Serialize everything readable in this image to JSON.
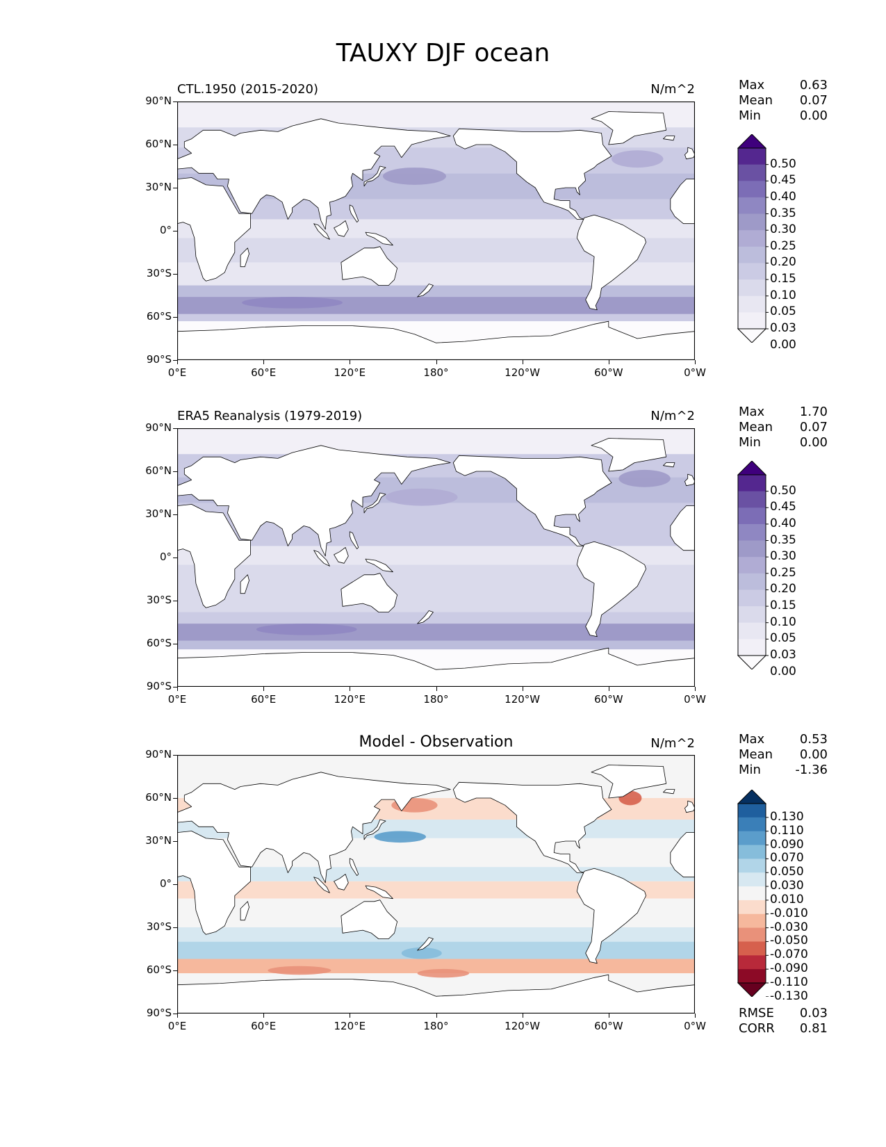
{
  "figure": {
    "title": "TAUXY DJF ocean"
  },
  "axes": {
    "y_ticks": [
      "90°N",
      "60°N",
      "30°N",
      "0°",
      "30°S",
      "60°S",
      "90°S"
    ],
    "x_ticks": [
      "0°E",
      "60°E",
      "120°E",
      "180°",
      "120°W",
      "60°W",
      "0°W"
    ]
  },
  "panels": [
    {
      "title": "CTL.1950 (2015-2020)",
      "units": "N/m^2",
      "stats": [
        {
          "label": "Max",
          "value": "0.63"
        },
        {
          "label": "Mean",
          "value": "0.07"
        },
        {
          "label": "Min",
          "value": "0.00"
        }
      ],
      "colorbar": {
        "labels": [
          "0.50",
          "0.45",
          "0.40",
          "0.35",
          "0.30",
          "0.25",
          "0.20",
          "0.15",
          "0.10",
          "0.05",
          "0.03",
          "0.00"
        ],
        "colors": [
          "#3f007d",
          "#54278f",
          "#6a51a3",
          "#7c6db6",
          "#8f87c2",
          "#9e9ac8",
          "#b0acd4",
          "#bcbddc",
          "#cbcbe4",
          "#dadaeb",
          "#e8e7f2",
          "#f2f0f7",
          "#fcfbfd"
        ]
      }
    },
    {
      "title": "ERA5 Reanalysis (1979-2019)",
      "units": "N/m^2",
      "stats": [
        {
          "label": "Max",
          "value": "1.70"
        },
        {
          "label": "Mean",
          "value": "0.07"
        },
        {
          "label": "Min",
          "value": "0.00"
        }
      ],
      "colorbar": {
        "labels": [
          "0.50",
          "0.45",
          "0.40",
          "0.35",
          "0.30",
          "0.25",
          "0.20",
          "0.15",
          "0.10",
          "0.05",
          "0.03",
          "0.00"
        ],
        "colors": [
          "#3f007d",
          "#54278f",
          "#6a51a3",
          "#7c6db6",
          "#8f87c2",
          "#9e9ac8",
          "#b0acd4",
          "#bcbddc",
          "#cbcbe4",
          "#dadaeb",
          "#e8e7f2",
          "#f2f0f7",
          "#fcfbfd"
        ]
      }
    },
    {
      "title": "Model - Observation",
      "units": "N/m^2",
      "stats": [
        {
          "label": "Max",
          "value": "0.53"
        },
        {
          "label": "Mean",
          "value": "0.00"
        },
        {
          "label": "Min",
          "value": "-1.36"
        }
      ],
      "colorbar": {
        "labels": [
          "0.130",
          "0.110",
          "0.090",
          "0.070",
          "0.050",
          "0.030",
          "0.010",
          "-0.010",
          "-0.030",
          "-0.050",
          "-0.070",
          "-0.090",
          "-0.110",
          "-0.130"
        ],
        "colors": [
          "#053061",
          "#1f5f9e",
          "#3a7fb8",
          "#5b9dcb",
          "#86bddb",
          "#b1d5e8",
          "#d7e8f1",
          "#f5f5f5",
          "#fbdccc",
          "#f6b89d",
          "#e9917a",
          "#d6604d",
          "#b8293a",
          "#8c0a26",
          "#67001f"
        ]
      },
      "footer": [
        {
          "label": "RMSE",
          "value": "0.03"
        },
        {
          "label": "CORR",
          "value": "0.81"
        }
      ]
    }
  ],
  "chart_data": [
    {
      "type": "heatmap",
      "title": "CTL.1950 (2015-2020)",
      "units": "N/m^2",
      "xlim": [
        0,
        360
      ],
      "ylim": [
        -90,
        90
      ],
      "xlabel": "",
      "ylabel": "",
      "zonal_mean_by_latitude": {
        "lat": [
          75,
          60,
          45,
          30,
          15,
          0,
          -15,
          -30,
          -45,
          -52,
          -60,
          -65
        ],
        "value": [
          0.04,
          0.1,
          0.14,
          0.13,
          0.12,
          0.05,
          0.08,
          0.06,
          0.17,
          0.18,
          0.12,
          0.03
        ]
      },
      "levels": [
        0.0,
        0.03,
        0.05,
        0.1,
        0.15,
        0.2,
        0.25,
        0.3,
        0.35,
        0.4,
        0.45,
        0.5
      ]
    },
    {
      "type": "heatmap",
      "title": "ERA5 Reanalysis (1979-2019)",
      "units": "N/m^2",
      "xlim": [
        0,
        360
      ],
      "ylim": [
        -90,
        90
      ],
      "xlabel": "",
      "ylabel": "",
      "zonal_mean_by_latitude": {
        "lat": [
          75,
          60,
          45,
          30,
          15,
          0,
          -15,
          -30,
          -45,
          -52,
          -60,
          -65
        ],
        "value": [
          0.04,
          0.11,
          0.15,
          0.11,
          0.11,
          0.05,
          0.09,
          0.07,
          0.14,
          0.17,
          0.14,
          0.04
        ]
      },
      "levels": [
        0.0,
        0.03,
        0.05,
        0.1,
        0.15,
        0.2,
        0.25,
        0.3,
        0.35,
        0.4,
        0.45,
        0.5
      ]
    },
    {
      "type": "heatmap",
      "title": "Model - Observation",
      "units": "N/m^2",
      "xlim": [
        0,
        360
      ],
      "ylim": [
        -90,
        90
      ],
      "xlabel": "",
      "ylabel": "",
      "zonal_mean_by_latitude": {
        "lat": [
          75,
          60,
          45,
          30,
          15,
          0,
          -15,
          -30,
          -45,
          -52,
          -60,
          -65
        ],
        "value": [
          0.0,
          -0.02,
          -0.01,
          0.03,
          0.02,
          -0.01,
          -0.01,
          -0.01,
          0.03,
          0.01,
          -0.03,
          0.0
        ]
      },
      "levels": [
        -0.13,
        -0.11,
        -0.09,
        -0.07,
        -0.05,
        -0.03,
        -0.01,
        0.01,
        0.03,
        0.05,
        0.07,
        0.09,
        0.11,
        0.13
      ]
    }
  ]
}
